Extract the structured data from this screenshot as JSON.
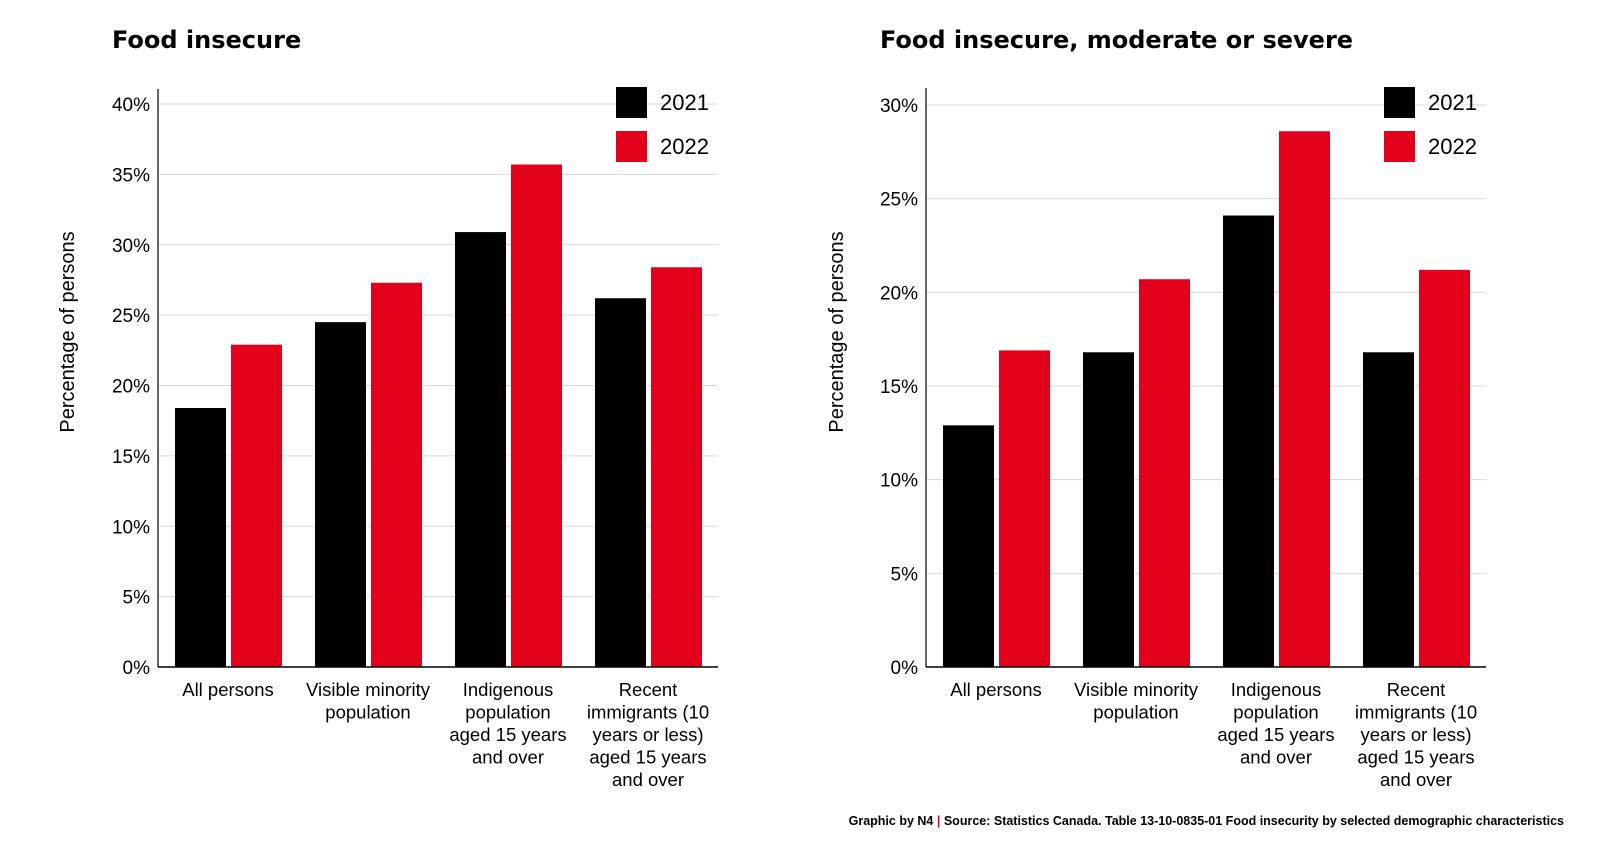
{
  "colors": {
    "2021": "#000000",
    "2022": "#e2001a",
    "grid": "#d9d9d9",
    "axis": "#000000"
  },
  "chart_data": [
    {
      "type": "bar",
      "title": "Food insecure",
      "ylabel": "Percentage of persons",
      "xlabel": "",
      "ylim": [
        0,
        40
      ],
      "yticks": [
        "0%",
        "5%",
        "10%",
        "15%",
        "20%",
        "25%",
        "30%",
        "35%",
        "40%"
      ],
      "ytick_values": [
        0,
        5,
        10,
        15,
        20,
        25,
        30,
        35,
        40
      ],
      "categories": [
        [
          "All persons"
        ],
        [
          "Visible minority",
          "population"
        ],
        [
          "Indigenous",
          "population",
          "aged 15 years",
          "and over"
        ],
        [
          "Recent",
          "immigrants (10",
          "years or less)",
          "aged 15 years",
          "and over"
        ]
      ],
      "series": [
        {
          "name": "2021",
          "values": [
            18.4,
            24.5,
            30.9,
            26.2
          ]
        },
        {
          "name": "2022",
          "values": [
            22.9,
            27.3,
            35.7,
            28.4
          ]
        }
      ],
      "legend": "top-right",
      "grid": true
    },
    {
      "type": "bar",
      "title": "Food insecure, moderate or severe",
      "ylabel": "Percentage of persons",
      "xlabel": "",
      "ylim": [
        0,
        30
      ],
      "yticks": [
        "0%",
        "5%",
        "10%",
        "15%",
        "20%",
        "25%",
        "30%"
      ],
      "ytick_values": [
        0,
        5,
        10,
        15,
        20,
        25,
        30
      ],
      "categories": [
        [
          "All persons"
        ],
        [
          "Visible minority",
          "population"
        ],
        [
          "Indigenous",
          "population",
          "aged 15 years",
          "and over"
        ],
        [
          "Recent",
          "immigrants (10",
          "years or less)",
          "aged 15 years",
          "and over"
        ]
      ],
      "series": [
        {
          "name": "2021",
          "values": [
            12.9,
            16.8,
            24.1,
            16.8
          ]
        },
        {
          "name": "2022",
          "values": [
            16.9,
            20.7,
            28.6,
            21.2
          ]
        }
      ],
      "legend": "top-right",
      "grid": true
    }
  ],
  "footer": {
    "credit": "Graphic by N4",
    "separator": "|",
    "source": "Source: Statistics Canada. Table 13-10-0835-01  Food insecurity by selected demographic characteristics"
  }
}
